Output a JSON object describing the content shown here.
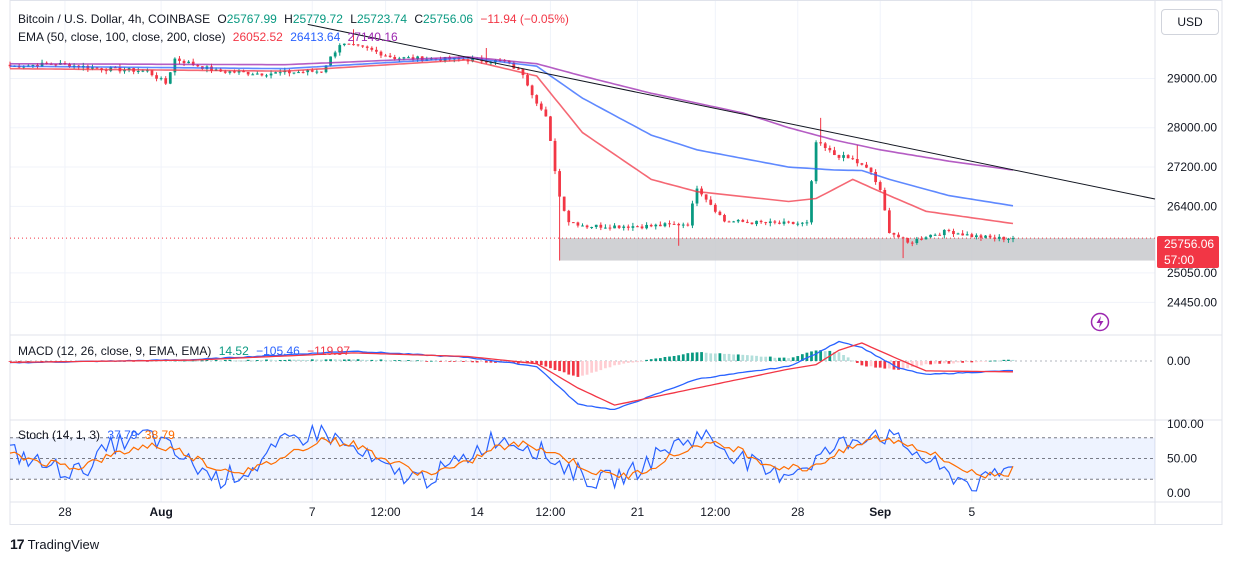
{
  "header": {
    "symbol": "Bitcoin / U.S. Dollar, 4h, COINBASE",
    "o_label": "O",
    "o_value": "25767.99",
    "h_label": "H",
    "h_value": "25779.72",
    "l_label": "L",
    "l_value": "25723.74",
    "c_label": "C",
    "c_value": "25756.06",
    "change": "−11.94 (−0.05%)"
  },
  "ema_legend": {
    "label": "EMA (50, close, 100, close, 200, close)",
    "ema50": "26052.52",
    "ema100": "26413.64",
    "ema200": "27140.16"
  },
  "macd_legend": {
    "label": "MACD (12, 26, close, 9, EMA, EMA)",
    "hist": "14.52",
    "macd": "−105.46",
    "signal": "−119.97"
  },
  "stoch_legend": {
    "label": "Stoch (14, 1, 3)",
    "k": "37.79",
    "d": "38.79"
  },
  "currency_button": "USD",
  "price_badge": {
    "price": "25756.06",
    "countdown": "57:00"
  },
  "branding": "TradingView",
  "colors": {
    "up": "#089981",
    "down": "#f23645",
    "ema50": "#f23645",
    "ema100": "#2962ff",
    "ema200": "#9c27b0",
    "macd": "#2962ff",
    "signal": "#f23645",
    "stoch_k": "#2962ff",
    "stoch_d": "#ff6d00",
    "support_zone": "#c8c9cd",
    "trendline": "#131722"
  },
  "chart_data": {
    "type": "line",
    "title": "Bitcoin / U.S. Dollar, 4h, COINBASE",
    "price_axis": {
      "ticks": [
        "29000.00",
        "28000.00",
        "27200.00",
        "26400.00",
        "25050.00",
        "24450.00"
      ],
      "tick_values": [
        29000,
        28000,
        27200,
        26400,
        25050,
        24450
      ]
    },
    "macd_axis": {
      "ticks": [
        "0.00"
      ]
    },
    "stoch_axis": {
      "ticks": [
        "100.00",
        "50.00",
        "0.00"
      ],
      "tick_values": [
        100,
        50,
        0
      ],
      "bands": [
        80,
        20
      ]
    },
    "time_axis": {
      "labels": [
        "28",
        "Aug",
        "7",
        "12:00",
        "14",
        "12:00",
        "21",
        "12:00",
        "28",
        "Sep",
        "5"
      ],
      "bold": [
        false,
        true,
        false,
        false,
        false,
        false,
        false,
        false,
        false,
        true,
        false
      ],
      "bar_index": [
        12,
        33,
        66,
        82,
        102,
        118,
        137,
        154,
        172,
        190,
        210
      ]
    },
    "bar_count": 220,
    "close_anchors": [
      [
        0,
        29250
      ],
      [
        10,
        29300
      ],
      [
        20,
        29200
      ],
      [
        30,
        29150
      ],
      [
        34,
        28900
      ],
      [
        36,
        29400
      ],
      [
        45,
        29150
      ],
      [
        55,
        29100
      ],
      [
        68,
        29150
      ],
      [
        72,
        29700
      ],
      [
        78,
        29600
      ],
      [
        84,
        29420
      ],
      [
        100,
        29380
      ],
      [
        108,
        29350
      ],
      [
        112,
        29100
      ],
      [
        114,
        28700
      ],
      [
        117,
        28200
      ],
      [
        118,
        27700
      ],
      [
        120,
        26600
      ],
      [
        122,
        26100
      ],
      [
        126,
        26000
      ],
      [
        140,
        26000
      ],
      [
        148,
        26050
      ],
      [
        150,
        26800
      ],
      [
        156,
        26100
      ],
      [
        168,
        26050
      ],
      [
        174,
        26050
      ],
      [
        176,
        27700
      ],
      [
        180,
        27450
      ],
      [
        184,
        27350
      ],
      [
        188,
        27100
      ],
      [
        190,
        26700
      ],
      [
        192,
        25900
      ],
      [
        196,
        25650
      ],
      [
        200,
        25800
      ],
      [
        205,
        25900
      ],
      [
        210,
        25800
      ],
      [
        215,
        25750
      ],
      [
        219,
        25756
      ]
    ],
    "spikes": [
      {
        "bar": 75,
        "high": 30000
      },
      {
        "bar": 104,
        "high": 29620
      },
      {
        "bar": 120,
        "low": 25300
      },
      {
        "bar": 146,
        "low": 25600
      },
      {
        "bar": 177,
        "high": 28200
      },
      {
        "bar": 185,
        "high": 27650
      },
      {
        "bar": 195,
        "low": 25350
      }
    ],
    "ema_curves": [
      {
        "name": "EMA 50",
        "points": [
          [
            0,
            29200
          ],
          [
            60,
            29150
          ],
          [
            100,
            29380
          ],
          [
            115,
            29050
          ],
          [
            125,
            27900
          ],
          [
            140,
            26950
          ],
          [
            150,
            26700
          ],
          [
            170,
            26500
          ],
          [
            176,
            26560
          ],
          [
            184,
            26950
          ],
          [
            190,
            26700
          ],
          [
            200,
            26300
          ],
          [
            219,
            26052
          ]
        ]
      },
      {
        "name": "EMA 100",
        "points": [
          [
            0,
            29250
          ],
          [
            60,
            29200
          ],
          [
            100,
            29420
          ],
          [
            115,
            29250
          ],
          [
            125,
            28600
          ],
          [
            140,
            27850
          ],
          [
            150,
            27550
          ],
          [
            170,
            27200
          ],
          [
            180,
            27140
          ],
          [
            186,
            27130
          ],
          [
            192,
            26950
          ],
          [
            205,
            26620
          ],
          [
            219,
            26413
          ]
        ]
      },
      {
        "name": "EMA 200",
        "points": [
          [
            0,
            29300
          ],
          [
            60,
            29280
          ],
          [
            100,
            29440
          ],
          [
            115,
            29300
          ],
          [
            125,
            29050
          ],
          [
            140,
            28700
          ],
          [
            160,
            28300
          ],
          [
            170,
            28000
          ],
          [
            180,
            27750
          ],
          [
            190,
            27550
          ],
          [
            205,
            27320
          ],
          [
            219,
            27140
          ]
        ]
      }
    ],
    "trendline": {
      "from": [
        65,
        30100
      ],
      "to": [
        250,
        26550
      ]
    },
    "support_zone": {
      "from_bar": 120,
      "to_bar": 250,
      "high": 25756,
      "low": 25300
    },
    "current_price": 25756.06,
    "macd_anchors": [
      {
        "bar": 0,
        "macd": -20,
        "signal": -15
      },
      {
        "bar": 40,
        "macd": 15,
        "signal": 10
      },
      {
        "bar": 75,
        "macd": 110,
        "signal": 90
      },
      {
        "bar": 100,
        "macd": 40,
        "signal": 50
      },
      {
        "bar": 115,
        "macd": -60,
        "signal": -30
      },
      {
        "bar": 124,
        "macd": -480,
        "signal": -300
      },
      {
        "bar": 132,
        "macd": -540,
        "signal": -490
      },
      {
        "bar": 150,
        "macd": -200,
        "signal": -300
      },
      {
        "bar": 170,
        "macd": -60,
        "signal": -90
      },
      {
        "bar": 176,
        "macd": 80,
        "signal": -40
      },
      {
        "bar": 181,
        "macd": 220,
        "signal": 120
      },
      {
        "bar": 186,
        "macd": 150,
        "signal": 200
      },
      {
        "bar": 194,
        "macd": -80,
        "signal": 20
      },
      {
        "bar": 200,
        "macd": -150,
        "signal": -110
      },
      {
        "bar": 219,
        "macd": -105.46,
        "signal": -119.97
      }
    ],
    "stoch_k": [
      60,
      40,
      30,
      70,
      85,
      50,
      20,
      35,
      75,
      90,
      60,
      30,
      20,
      45,
      80,
      70,
      40,
      15,
      30,
      65,
      85,
      55,
      25,
      40,
      70,
      90,
      65,
      30,
      10,
      40
    ],
    "stoch_d": [
      55,
      45,
      38,
      55,
      70,
      60,
      35,
      32,
      55,
      78,
      70,
      45,
      28,
      38,
      65,
      72,
      52,
      28,
      25,
      50,
      72,
      65,
      40,
      35,
      58,
      80,
      72,
      48,
      25,
      30
    ]
  }
}
